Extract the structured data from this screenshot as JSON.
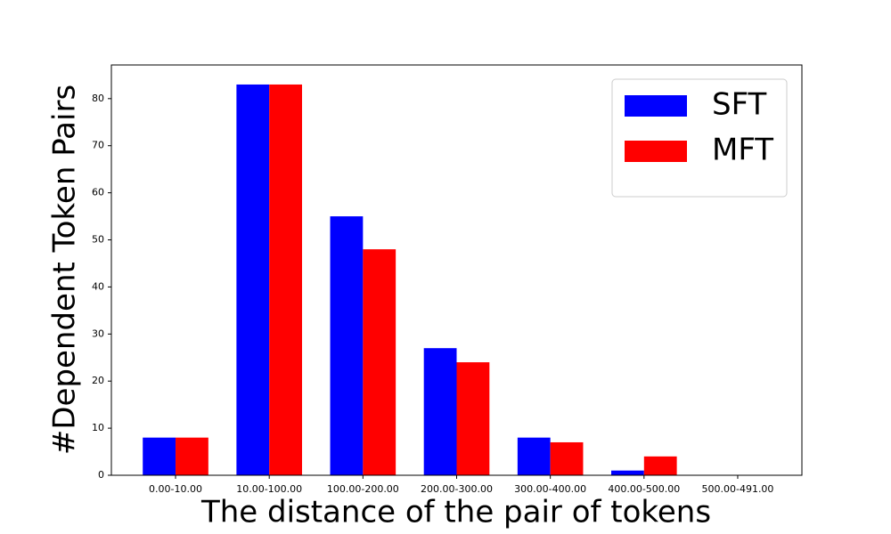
{
  "chart_data": {
    "type": "bar",
    "xlabel": "The distance of the pair of tokens",
    "ylabel": "#Dependent Token Pairs",
    "categories": [
      "0.00-10.00",
      "10.00-100.00",
      "100.00-200.00",
      "200.00-300.00",
      "300.00-400.00",
      "400.00-500.00",
      "500.00-491.00"
    ],
    "series": [
      {
        "name": "SFT",
        "color": "#0000ff",
        "values": [
          8,
          83,
          55,
          27,
          8,
          1,
          0
        ]
      },
      {
        "name": "MFT",
        "color": "#ff0000",
        "values": [
          8,
          83,
          48,
          24,
          7,
          4,
          0
        ]
      }
    ],
    "ylim": [
      0,
      87.15
    ],
    "yticks": [
      0,
      10,
      20,
      30,
      40,
      50,
      60,
      70,
      80
    ],
    "legend": "upper right"
  }
}
